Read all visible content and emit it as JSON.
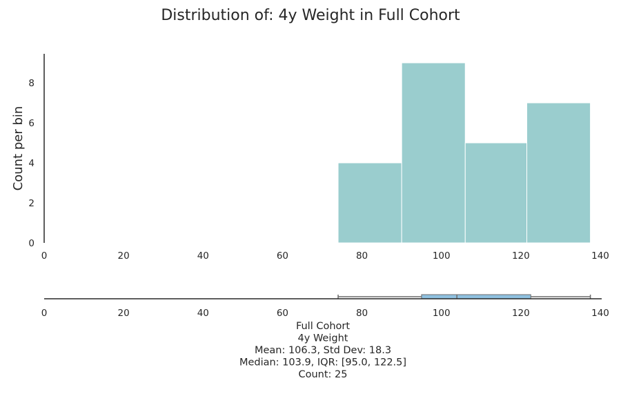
{
  "chart_data": [
    {
      "type": "bar",
      "title": "Distribution of: 4y Weight in Full Cohort",
      "xlabel": "",
      "ylabel": "Count per bin",
      "xlim": [
        0,
        140
      ],
      "ylim": [
        0,
        9.45
      ],
      "xticks": [
        "0",
        "20",
        "40",
        "60",
        "80",
        "100",
        "120",
        "140"
      ],
      "yticks": [
        "0",
        "2",
        "4",
        "6",
        "8"
      ],
      "grid": false,
      "bins": [
        {
          "x0": 74,
          "x1": 90,
          "count": 4
        },
        {
          "x0": 90,
          "x1": 106,
          "count": 9
        },
        {
          "x0": 106,
          "x1": 121.5,
          "count": 5
        },
        {
          "x0": 121.5,
          "x1": 137.5,
          "count": 7
        }
      ],
      "bar_color": "#9acdce"
    },
    {
      "type": "box",
      "xlim": [
        0,
        140
      ],
      "xticks": [
        "0",
        "20",
        "40",
        "60",
        "80",
        "100",
        "120",
        "140"
      ],
      "min": 74,
      "q1": 95.0,
      "median": 103.9,
      "q3": 122.5,
      "max": 137.5,
      "box_color": "#8fc1e0"
    }
  ],
  "stats": {
    "lines": [
      "Full Cohort",
      "4y Weight",
      "Mean: 106.3, Std Dev: 18.3",
      "Median: 103.9, IQR: [95.0, 122.5]",
      "Count: 25"
    ]
  }
}
